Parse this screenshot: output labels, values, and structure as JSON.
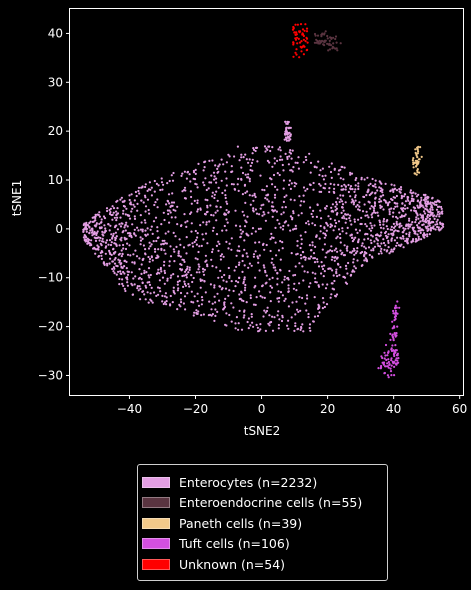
{
  "chart_data": {
    "type": "scatter",
    "xlabel": "tSNE2",
    "ylabel": "tSNE1",
    "xlim": [
      -58,
      61
    ],
    "ylim": [
      -34,
      45
    ],
    "xticks": [
      -40,
      -20,
      0,
      20,
      40,
      60
    ],
    "yticks": [
      -30,
      -20,
      -10,
      0,
      10,
      20,
      30,
      40
    ],
    "xtick_labels": [
      "−40",
      "−20",
      "0",
      "20",
      "40",
      "60"
    ],
    "ytick_labels": [
      "−30",
      "−20",
      "−10",
      "0",
      "10",
      "20",
      "30",
      "40"
    ],
    "grid": false,
    "legend_position": "below",
    "series": [
      {
        "name": "Enterocytes (n=2232)",
        "color": "#e39ee3",
        "count": 2232,
        "region": "main body x -54..55, y -22..22"
      },
      {
        "name": "Enteroendocrine cells (n=55)",
        "color": "#5a3440",
        "count": 55,
        "region": "x 16..24, y 36..40"
      },
      {
        "name": "Paneth cells (n=39)",
        "color": "#f2c98a",
        "count": 39,
        "region": "x 46..49, y 11..17"
      },
      {
        "name": "Tuft cells (n=106)",
        "color": "#d44fe0",
        "count": 106,
        "region": "x 36..42, y -31..-14"
      },
      {
        "name": "Unknown (n=54)",
        "color": "#ff0000",
        "count": 54,
        "region": "x 9..14, y 35..42"
      }
    ]
  }
}
